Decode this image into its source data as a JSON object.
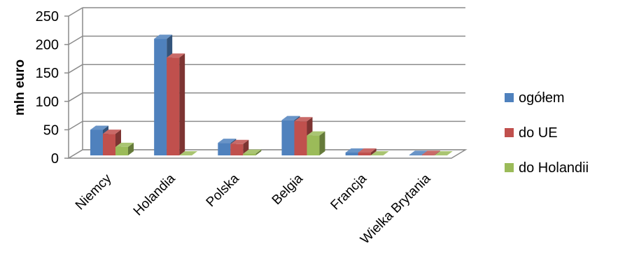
{
  "chart_data": {
    "type": "bar",
    "title": "",
    "xlabel": "",
    "ylabel": "mln euro",
    "ylim": [
      0,
      250
    ],
    "yticks": [
      0,
      50,
      100,
      150,
      200,
      250
    ],
    "grid": true,
    "legend_position": "right",
    "categories": [
      "Niemcy",
      "Holandia",
      "Polska",
      "Belgia",
      "Francja",
      "Wielka Brytania"
    ],
    "series": [
      {
        "name": "ogółem",
        "color": "#4F81BD",
        "values": [
          45,
          205,
          22,
          62,
          5,
          1
        ]
      },
      {
        "name": "do UE",
        "color": "#C0504D",
        "values": [
          38,
          172,
          20,
          60,
          5,
          1
        ]
      },
      {
        "name": "do Holandii",
        "color": "#9BBB59",
        "values": [
          15,
          0,
          3,
          35,
          0,
          0
        ]
      }
    ]
  }
}
